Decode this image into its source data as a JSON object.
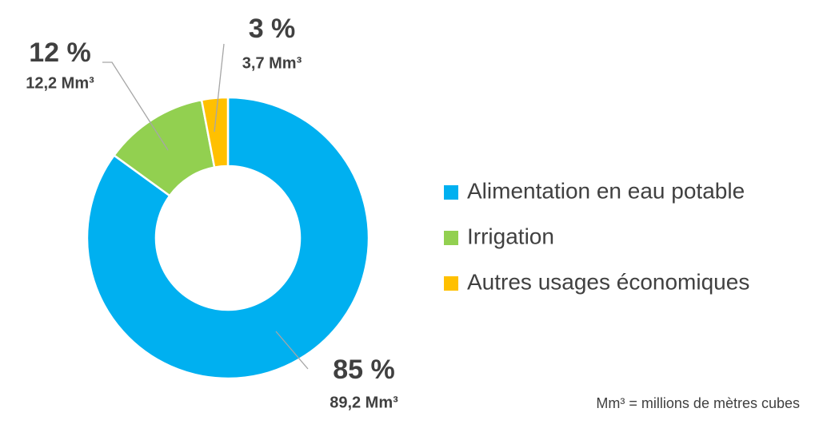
{
  "chart_data": {
    "type": "donut",
    "categories": [
      "Alimentation en eau potable",
      "Irrigation",
      "Autres usages économiques"
    ],
    "values": [
      85,
      12,
      3
    ],
    "value_labels": [
      "85 %",
      "12 %",
      "3 %"
    ],
    "volume_labels": [
      "89,2 Mm³",
      "12,2 Mm³",
      "3,7 Mm³"
    ],
    "colors": [
      "#00b0f0",
      "#92d050",
      "#ffc000"
    ],
    "note": "Mm³ = millions de mètres cubes"
  }
}
